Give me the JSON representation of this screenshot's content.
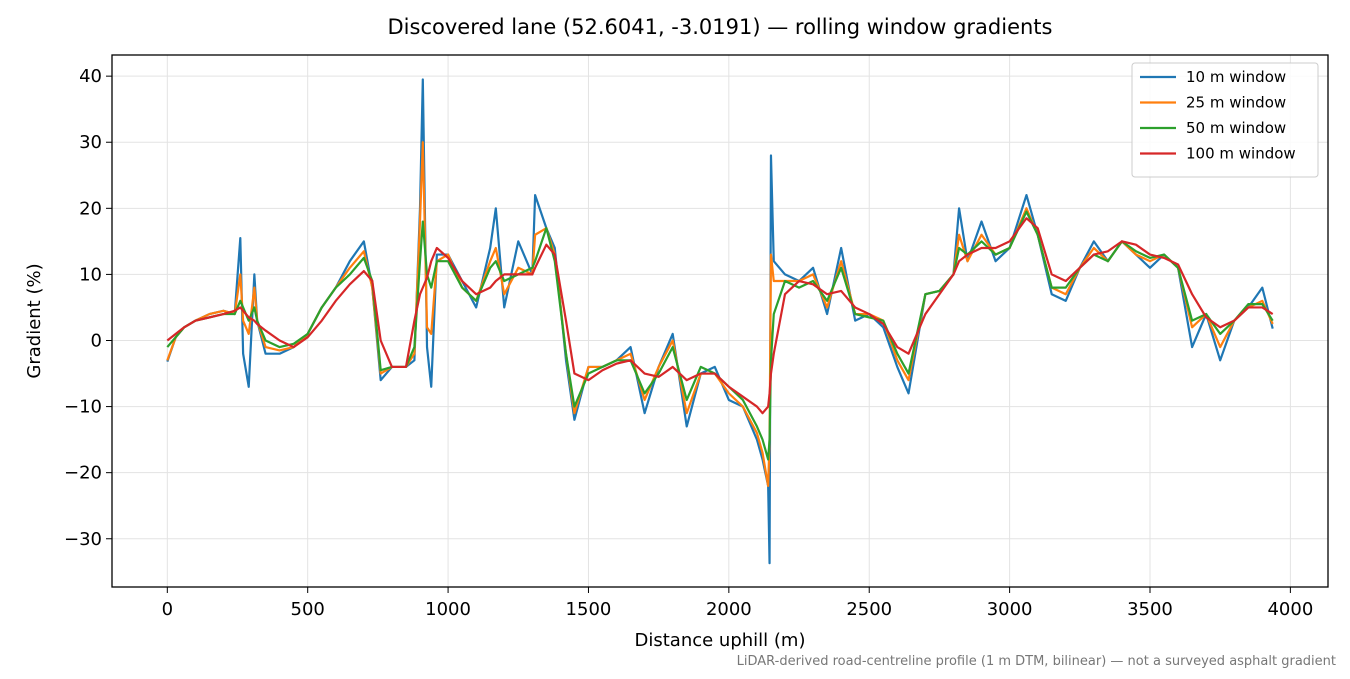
{
  "chart_data": {
    "type": "line",
    "title": "Discovered lane (52.6041, -3.0191) — rolling window gradients",
    "x_label": "Distance uphill (m)",
    "y_label": "Gradient (%)",
    "footnote": "LiDAR-derived road-centreline profile (1 m DTM, bilinear) — not a surveyed asphalt gradient",
    "x": [
      0,
      30,
      60,
      100,
      150,
      200,
      240,
      260,
      270,
      290,
      310,
      320,
      350,
      400,
      450,
      500,
      550,
      600,
      650,
      700,
      730,
      760,
      800,
      850,
      880,
      900,
      910,
      925,
      940,
      960,
      1000,
      1050,
      1100,
      1150,
      1170,
      1200,
      1250,
      1300,
      1310,
      1350,
      1380,
      1420,
      1450,
      1500,
      1550,
      1600,
      1650,
      1700,
      1750,
      1800,
      1850,
      1900,
      1950,
      2000,
      2050,
      2100,
      2120,
      2140,
      2145,
      2150,
      2160,
      2200,
      2250,
      2300,
      2350,
      2400,
      2450,
      2500,
      2550,
      2600,
      2640,
      2700,
      2750,
      2800,
      2820,
      2850,
      2900,
      2950,
      3000,
      3060,
      3100,
      3150,
      3200,
      3250,
      3300,
      3350,
      3400,
      3450,
      3500,
      3550,
      3600,
      3650,
      3700,
      3750,
      3800,
      3850,
      3900,
      3937
    ],
    "series": [
      {
        "name": "10 m window",
        "color": "#1f77b4",
        "values": [
          -3.2,
          0.5,
          2,
          3,
          4,
          4.5,
          4,
          15.5,
          -2,
          -7,
          10,
          3,
          -2,
          -2,
          -1,
          1,
          5,
          8,
          12,
          15,
          8,
          -6,
          -4,
          -4,
          -3,
          20,
          39.5,
          -1,
          -7,
          13,
          13,
          9,
          5,
          14,
          20,
          5,
          15,
          10,
          22,
          17,
          14,
          -3,
          -12,
          -4,
          -4,
          -3,
          -1,
          -11,
          -4,
          1,
          -13,
          -5,
          -4,
          -9,
          -10,
          -15,
          -18,
          -22,
          -33.7,
          28,
          12,
          10,
          9,
          11,
          4,
          14,
          3,
          4,
          2,
          -4,
          -8,
          7,
          7.5,
          10,
          20,
          12,
          18,
          12,
          14,
          22,
          16,
          7,
          6,
          11,
          15,
          12,
          15,
          13,
          11,
          13,
          11,
          -1,
          4,
          -3,
          3,
          5,
          8,
          1.8
        ]
      },
      {
        "name": "25 m window",
        "color": "#ff7f0e",
        "values": [
          -3,
          0.5,
          2,
          3,
          4,
          4.5,
          4,
          10,
          3,
          1,
          8,
          3,
          -1,
          -1.5,
          -1,
          1,
          5,
          8,
          11,
          13.5,
          8,
          -5,
          -4,
          -4,
          -2,
          18,
          30,
          2,
          1,
          12,
          13,
          8,
          6,
          12,
          14,
          7,
          11,
          10,
          16,
          17,
          13,
          -2,
          -11,
          -4,
          -4,
          -3,
          -2,
          -9,
          -4,
          0,
          -11,
          -5,
          -5,
          -8,
          -10,
          -14,
          -17,
          -22,
          -15,
          13,
          9,
          9,
          9,
          10,
          5,
          12,
          4,
          4,
          3,
          -3,
          -6,
          7,
          7.5,
          10,
          16,
          12,
          16,
          13,
          14,
          20,
          16,
          8,
          7,
          11,
          14,
          12,
          15,
          13,
          12,
          13,
          11,
          2,
          4,
          -1,
          3,
          5,
          6,
          2.5
        ]
      },
      {
        "name": "50 m window",
        "color": "#2ca02c",
        "values": [
          -1,
          0.5,
          2,
          3,
          3.5,
          4,
          4,
          6,
          5,
          3,
          5,
          3,
          0,
          -1,
          -0.5,
          1,
          5,
          8,
          10,
          12.5,
          9,
          -4.5,
          -4,
          -4,
          -1,
          12,
          18,
          10,
          8,
          12,
          12,
          8,
          6,
          11,
          12,
          9,
          10,
          11,
          12,
          17,
          12,
          -2,
          -10,
          -5,
          -4,
          -3,
          -3,
          -8,
          -5,
          -1,
          -9,
          -4,
          -5,
          -7,
          -9,
          -13,
          -15,
          -18,
          -15,
          -3,
          4,
          9,
          8,
          9,
          6,
          11,
          4,
          3.5,
          3,
          -2,
          -5,
          7,
          7.5,
          10,
          14,
          13,
          15,
          13,
          14,
          19.5,
          16,
          8,
          8,
          11,
          13,
          12,
          15,
          13.5,
          12.5,
          13,
          11,
          3,
          4,
          1,
          3,
          5.5,
          5.5,
          3
        ]
      },
      {
        "name": "100 m window",
        "color": "#d62728",
        "values": [
          0,
          1,
          2,
          3,
          3.5,
          4,
          4.5,
          5,
          4.5,
          3.5,
          3,
          2.5,
          1.5,
          0,
          -1,
          0.5,
          3,
          6,
          8.5,
          10.5,
          9,
          0,
          -4,
          -4,
          3,
          7,
          8,
          9.5,
          12,
          14,
          12.5,
          9,
          7,
          8,
          9,
          10,
          10,
          10,
          11,
          14.5,
          13,
          3,
          -5,
          -6,
          -4.5,
          -3.5,
          -3,
          -5,
          -5.5,
          -4,
          -6,
          -5,
          -5,
          -7,
          -8.5,
          -10,
          -11,
          -10,
          -8,
          -5,
          -2,
          7,
          9,
          8.5,
          7,
          7.5,
          5,
          4,
          2.5,
          -1,
          -2,
          4,
          7,
          10,
          12,
          13,
          14,
          14,
          15,
          18.5,
          17,
          10,
          9,
          11,
          13,
          13.5,
          15,
          14.5,
          13,
          12.5,
          11.5,
          7,
          3.5,
          2,
          3,
          5,
          5,
          4
        ]
      }
    ],
    "xlim": [
      -197,
      4134
    ],
    "ylim": [
      -37.3,
      43.2
    ],
    "xticks": [
      0,
      500,
      1000,
      1500,
      2000,
      2500,
      3000,
      3500,
      4000
    ],
    "yticks": [
      {
        "value": -30,
        "label": "−30"
      },
      {
        "value": -20,
        "label": "−20"
      },
      {
        "value": -10,
        "label": "−10"
      },
      0,
      10,
      20,
      30,
      40
    ],
    "grid": true,
    "legend": "upper right"
  }
}
